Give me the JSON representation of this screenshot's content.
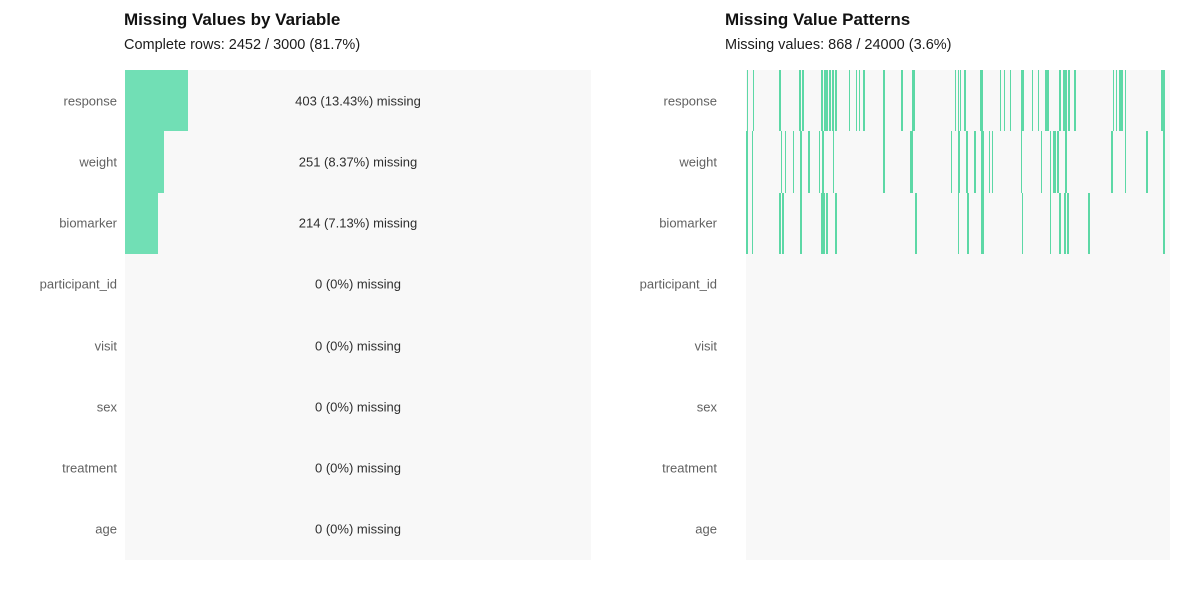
{
  "colors": {
    "bar_fill": "#71dfb5",
    "tick_fill": "#5dd8a6",
    "plot_background": "#f8f8f8",
    "page_background": "#ffffff",
    "title_text": "#111111",
    "subtitle_text": "#1c1c1c",
    "axis_label_text": "#616161",
    "annotation_text": "#2e2e2e"
  },
  "chart_data": [
    {
      "type": "bar",
      "orientation": "horizontal",
      "title": "Missing Values by Variable",
      "subtitle": "Complete rows: 2452 / 3000 (81.7%)",
      "categories": [
        "response",
        "weight",
        "biomarker",
        "participant_id",
        "visit",
        "sex",
        "treatment",
        "age"
      ],
      "values": [
        403,
        251,
        214,
        0,
        0,
        0,
        0,
        0
      ],
      "percent_missing": [
        13.43,
        8.37,
        7.13,
        0,
        0,
        0,
        0,
        0
      ],
      "annotations": [
        "403 (13.43%) missing",
        "251 (8.37%) missing",
        "214 (7.13%) missing",
        "0 (0%) missing",
        "0 (0%) missing",
        "0 (0%) missing",
        "0 (0%) missing",
        "0 (0%) missing"
      ],
      "xlabel": "",
      "ylabel": "",
      "xlim": [
        0,
        3000
      ],
      "grid": false,
      "legend": false
    },
    {
      "type": "heatmap",
      "title": "Missing Value Patterns",
      "subtitle": "Missing values: 868 / 24000 (3.6%)",
      "categories": [
        "response",
        "weight",
        "biomarker",
        "participant_id",
        "visit",
        "sex",
        "treatment",
        "age"
      ],
      "n_rows_data": 3000,
      "total_cells": 24000,
      "total_missing": 868,
      "grid": false,
      "legend": false,
      "rows": [
        {
          "category": "response",
          "missing_count": 403,
          "ticks": [
            0.002,
            0.016,
            0.079,
            0.126,
            0.133,
            0.177,
            0.184,
            0.189,
            0.196,
            0.203,
            0.21,
            0.242,
            0.259,
            0.266,
            0.277,
            0.324,
            0.366,
            0.392,
            0.492,
            0.499,
            0.504,
            0.515,
            0.552,
            0.599,
            0.608,
            0.622,
            0.648,
            0.674,
            0.688,
            0.706,
            0.711,
            0.739,
            0.748,
            0.753,
            0.76,
            0.774,
            0.865,
            0.872,
            0.879,
            0.883,
            0.893,
            0.979,
            0.984
          ],
          "wide_ticks": [
            0.392,
            0.552,
            0.648,
            0.883
          ]
        },
        {
          "category": "weight",
          "missing_count": 251,
          "ticks": [
            0.0,
            0.014,
            0.082,
            0.091,
            0.11,
            0.128,
            0.147,
            0.172,
            0.18,
            0.205,
            0.324,
            0.387,
            0.483,
            0.501,
            0.52,
            0.538,
            0.555,
            0.573,
            0.58,
            0.648,
            0.695,
            0.716,
            0.723,
            0.727,
            0.734,
            0.753,
            0.862,
            0.893,
            0.944,
            0.984
          ],
          "wide_ticks": [
            0.387,
            0.555
          ]
        },
        {
          "category": "biomarker",
          "missing_count": 214,
          "ticks": [
            0.0,
            0.014,
            0.079,
            0.086,
            0.128,
            0.177,
            0.182,
            0.189,
            0.21,
            0.399,
            0.499,
            0.522,
            0.555,
            0.65,
            0.716,
            0.739,
            0.751,
            0.758,
            0.807,
            0.984
          ],
          "wide_ticks": [
            0.555
          ]
        },
        {
          "category": "participant_id",
          "missing_count": 0,
          "ticks": [],
          "wide_ticks": []
        },
        {
          "category": "visit",
          "missing_count": 0,
          "ticks": [],
          "wide_ticks": []
        },
        {
          "category": "sex",
          "missing_count": 0,
          "ticks": [],
          "wide_ticks": []
        },
        {
          "category": "treatment",
          "missing_count": 0,
          "ticks": [],
          "wide_ticks": []
        },
        {
          "category": "age",
          "missing_count": 0,
          "ticks": [],
          "wide_ticks": []
        }
      ]
    }
  ]
}
